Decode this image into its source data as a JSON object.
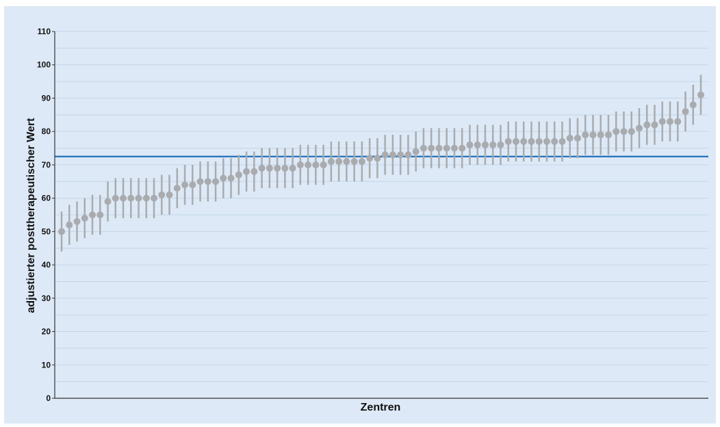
{
  "chart_data": {
    "type": "scatter",
    "title": "",
    "xlabel": "Zentren",
    "ylabel": "adjustierter posttherapeutischer Wert",
    "ylim": [
      0,
      110
    ],
    "yticks": [
      0,
      10,
      20,
      30,
      40,
      50,
      60,
      70,
      80,
      90,
      100,
      110
    ],
    "grid": true,
    "reference_line": 72.5,
    "errorbar_halfwidth": 6,
    "values": [
      50,
      52,
      53,
      54,
      55,
      55,
      59,
      60,
      60,
      60,
      60,
      60,
      60,
      61,
      61,
      63,
      64,
      64,
      65,
      65,
      65,
      66,
      66,
      67,
      68,
      68,
      69,
      69,
      69,
      69,
      69,
      70,
      70,
      70,
      70,
      71,
      71,
      71,
      71,
      71,
      72,
      72,
      73,
      73,
      73,
      73,
      74,
      75,
      75,
      75,
      75,
      75,
      75,
      76,
      76,
      76,
      76,
      76,
      77,
      77,
      77,
      77,
      77,
      77,
      77,
      77,
      78,
      78,
      79,
      79,
      79,
      79,
      80,
      80,
      80,
      81,
      82,
      82,
      83,
      83,
      83,
      86,
      88,
      91
    ],
    "colors": {
      "background": "#dde9f6",
      "grid": "#c4d6e9",
      "points": "#a9abae",
      "reference_line": "#1f6fba",
      "axis": "#333333"
    }
  }
}
